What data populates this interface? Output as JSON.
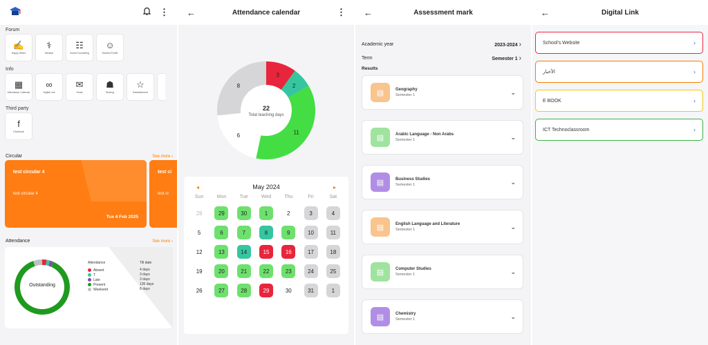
{
  "home": {
    "forum_label": "Forum",
    "forum_tiles": [
      "Happy letters",
      "Medical",
      "Social Counseling",
      "Student Profile"
    ],
    "info_label": "Info",
    "info_tiles": [
      "Attendance Calendar",
      "Digital Link",
      "Email",
      "Sharing",
      "Establishment"
    ],
    "third_party_label": "Third party",
    "third_party_tiles": [
      "Facebook"
    ],
    "circular_label": "Circular",
    "see_more": "See more",
    "circulars": [
      {
        "title": "test circular 4",
        "body": "test circular 4",
        "date": "Tue 4 Feb 2025"
      },
      {
        "title": "test ci",
        "body": "test ci",
        "date": ""
      }
    ],
    "attendance_label": "Attendance",
    "attendance_status": "Outstanding",
    "legend_title": "Attendance",
    "till_title": "Till date",
    "legend": [
      {
        "label": "Absent",
        "color": "#e8253c",
        "till": "4 days"
      },
      {
        "label": "T",
        "color": "#35c6a0",
        "till": "3 days"
      },
      {
        "label": "Late",
        "color": "#8e44ad",
        "till": "3 days"
      },
      {
        "label": "Present",
        "color": "#1f9a1f",
        "till": "135 days"
      },
      {
        "label": "Weekend",
        "color": "#c0c0c0",
        "till": "8 days"
      }
    ]
  },
  "attendance_calendar": {
    "title": "Attendance calendar",
    "total_days": "22",
    "total_days_label": "Total teaching days",
    "segments": [
      {
        "value": 3,
        "color": "#e8253c"
      },
      {
        "value": 2,
        "color": "#35c6a0"
      },
      {
        "value": 11,
        "color": "#44dd44"
      },
      {
        "value": 6,
        "color": "#ffffff"
      },
      {
        "value": 8,
        "color": "#d6d6d8"
      }
    ],
    "month": "May 2024",
    "weekdays": [
      "Sun",
      "Mon",
      "Tue",
      "Wed",
      "Thu",
      "Fri",
      "Sat"
    ],
    "days": [
      {
        "d": "28",
        "s": "fa"
      },
      {
        "d": "29",
        "s": "g"
      },
      {
        "d": "30",
        "s": "g"
      },
      {
        "d": "1",
        "s": "g"
      },
      {
        "d": "2",
        "s": ""
      },
      {
        "d": "3",
        "s": "gr"
      },
      {
        "d": "4",
        "s": "gr"
      },
      {
        "d": "5",
        "s": ""
      },
      {
        "d": "6",
        "s": "g"
      },
      {
        "d": "7",
        "s": "g"
      },
      {
        "d": "8",
        "s": "t"
      },
      {
        "d": "9",
        "s": "g"
      },
      {
        "d": "10",
        "s": "gr"
      },
      {
        "d": "11",
        "s": "gr"
      },
      {
        "d": "12",
        "s": ""
      },
      {
        "d": "13",
        "s": "g"
      },
      {
        "d": "14",
        "s": "t"
      },
      {
        "d": "15",
        "s": "r"
      },
      {
        "d": "16",
        "s": "r"
      },
      {
        "d": "17",
        "s": "gr"
      },
      {
        "d": "18",
        "s": "gr"
      },
      {
        "d": "19",
        "s": ""
      },
      {
        "d": "20",
        "s": "g"
      },
      {
        "d": "21",
        "s": "g"
      },
      {
        "d": "22",
        "s": "g"
      },
      {
        "d": "23",
        "s": "g"
      },
      {
        "d": "24",
        "s": "gr"
      },
      {
        "d": "25",
        "s": "gr"
      },
      {
        "d": "26",
        "s": ""
      },
      {
        "d": "27",
        "s": "g"
      },
      {
        "d": "28",
        "s": "g"
      },
      {
        "d": "29",
        "s": "r"
      },
      {
        "d": "30",
        "s": ""
      },
      {
        "d": "31",
        "s": "gr"
      },
      {
        "d": "1",
        "s": "gr"
      }
    ]
  },
  "assessment": {
    "title": "Assessment mark",
    "academic_year_label": "Academic year",
    "academic_year": "2023-2024",
    "term_label": "Term",
    "term": "Semester 1",
    "results_label": "Results",
    "subjects": [
      {
        "name": "Geography",
        "term": "Semester 1",
        "color": "#f9c48e"
      },
      {
        "name": "Arabic Language - Non Arabs",
        "term": "Semester 1",
        "color": "#9fe39f"
      },
      {
        "name": "Business Studies",
        "term": "Semester 1",
        "color": "#b18ee6"
      },
      {
        "name": "English Language and Literature",
        "term": "Semester 1",
        "color": "#f9c48e"
      },
      {
        "name": "Computer Studies",
        "term": "Semester 1",
        "color": "#9fe39f"
      },
      {
        "name": "Chemistry",
        "term": "Semester 1",
        "color": "#b18ee6"
      }
    ]
  },
  "digital_link": {
    "title": "Digital Link",
    "links": [
      {
        "label": "School's Website",
        "border": "#e8253c"
      },
      {
        "label": "الأخبار",
        "border": "#f57c00"
      },
      {
        "label": "E BOOK",
        "border": "#f2c80f"
      },
      {
        "label": "ICT Technoclassroom",
        "border": "#3cb043"
      }
    ]
  }
}
